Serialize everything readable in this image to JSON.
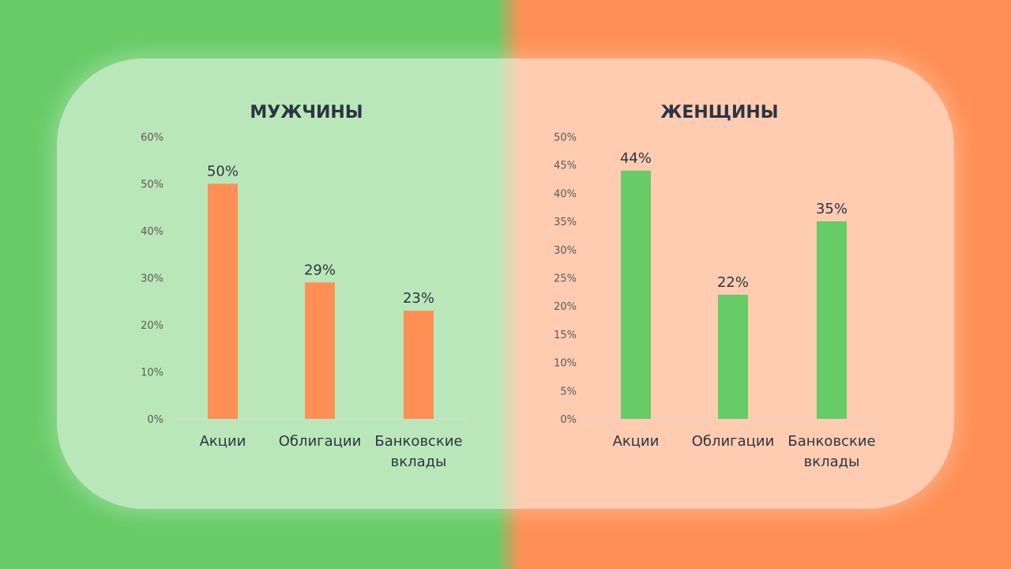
{
  "colors": {
    "left_background": "#67cb67",
    "right_background": "#ff8f54",
    "panel": "rgba(255,255,255,0.55)",
    "text": "#2d3442",
    "tick_text": "#595959",
    "axis_line": "#d9d9d9"
  },
  "chart_data": [
    {
      "type": "bar",
      "title": "МУЖЧИНЫ",
      "categories": [
        "Акции",
        "Облигации",
        "Банковские вклады"
      ],
      "category_lines": [
        [
          "Акции"
        ],
        [
          "Облигации"
        ],
        [
          "Банковские",
          "вклады"
        ]
      ],
      "values": [
        50,
        29,
        23
      ],
      "data_labels": [
        "50%",
        "29%",
        "23%"
      ],
      "ylim": [
        0,
        60
      ],
      "ytick_step": 10,
      "yticks": [
        "0%",
        "10%",
        "20%",
        "30%",
        "40%",
        "50%",
        "60%"
      ],
      "bar_color": "#ff8f54",
      "grid": false,
      "legend": "none"
    },
    {
      "type": "bar",
      "title": "ЖЕНЩИНЫ",
      "categories": [
        "Акции",
        "Облигации",
        "Банковские вклады"
      ],
      "category_lines": [
        [
          "Акции"
        ],
        [
          "Облигации"
        ],
        [
          "Банковские",
          "вклады"
        ]
      ],
      "values": [
        44,
        22,
        35
      ],
      "data_labels": [
        "44%",
        "22%",
        "35%"
      ],
      "ylim": [
        0,
        50
      ],
      "ytick_step": 5,
      "yticks": [
        "0%",
        "5%",
        "10%",
        "15%",
        "20%",
        "25%",
        "30%",
        "35%",
        "40%",
        "45%",
        "50%"
      ],
      "bar_color": "#67cb67",
      "grid": false,
      "legend": "none"
    }
  ]
}
